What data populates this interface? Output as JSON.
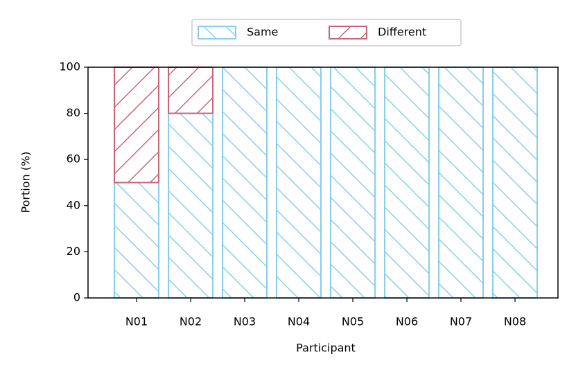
{
  "chart_data": {
    "type": "stacked_bar",
    "categories": [
      "N01",
      "N02",
      "N03",
      "N04",
      "N05",
      "N06",
      "N07",
      "N08"
    ],
    "series": [
      {
        "name": "Same",
        "color": "#87ceeb",
        "hatch": "\\",
        "values": [
          50,
          80,
          100,
          100,
          100,
          100,
          100,
          100
        ]
      },
      {
        "name": "Different",
        "color": "#c96476",
        "hatch": "/",
        "values": [
          50,
          20,
          0,
          0,
          0,
          0,
          0,
          0
        ]
      }
    ],
    "ylim": [
      0,
      100
    ],
    "yticks": [
      0,
      20,
      40,
      60,
      80,
      100
    ],
    "xlabel": "Participant",
    "ylabel": "Portion (%)",
    "legend": "upper center"
  }
}
